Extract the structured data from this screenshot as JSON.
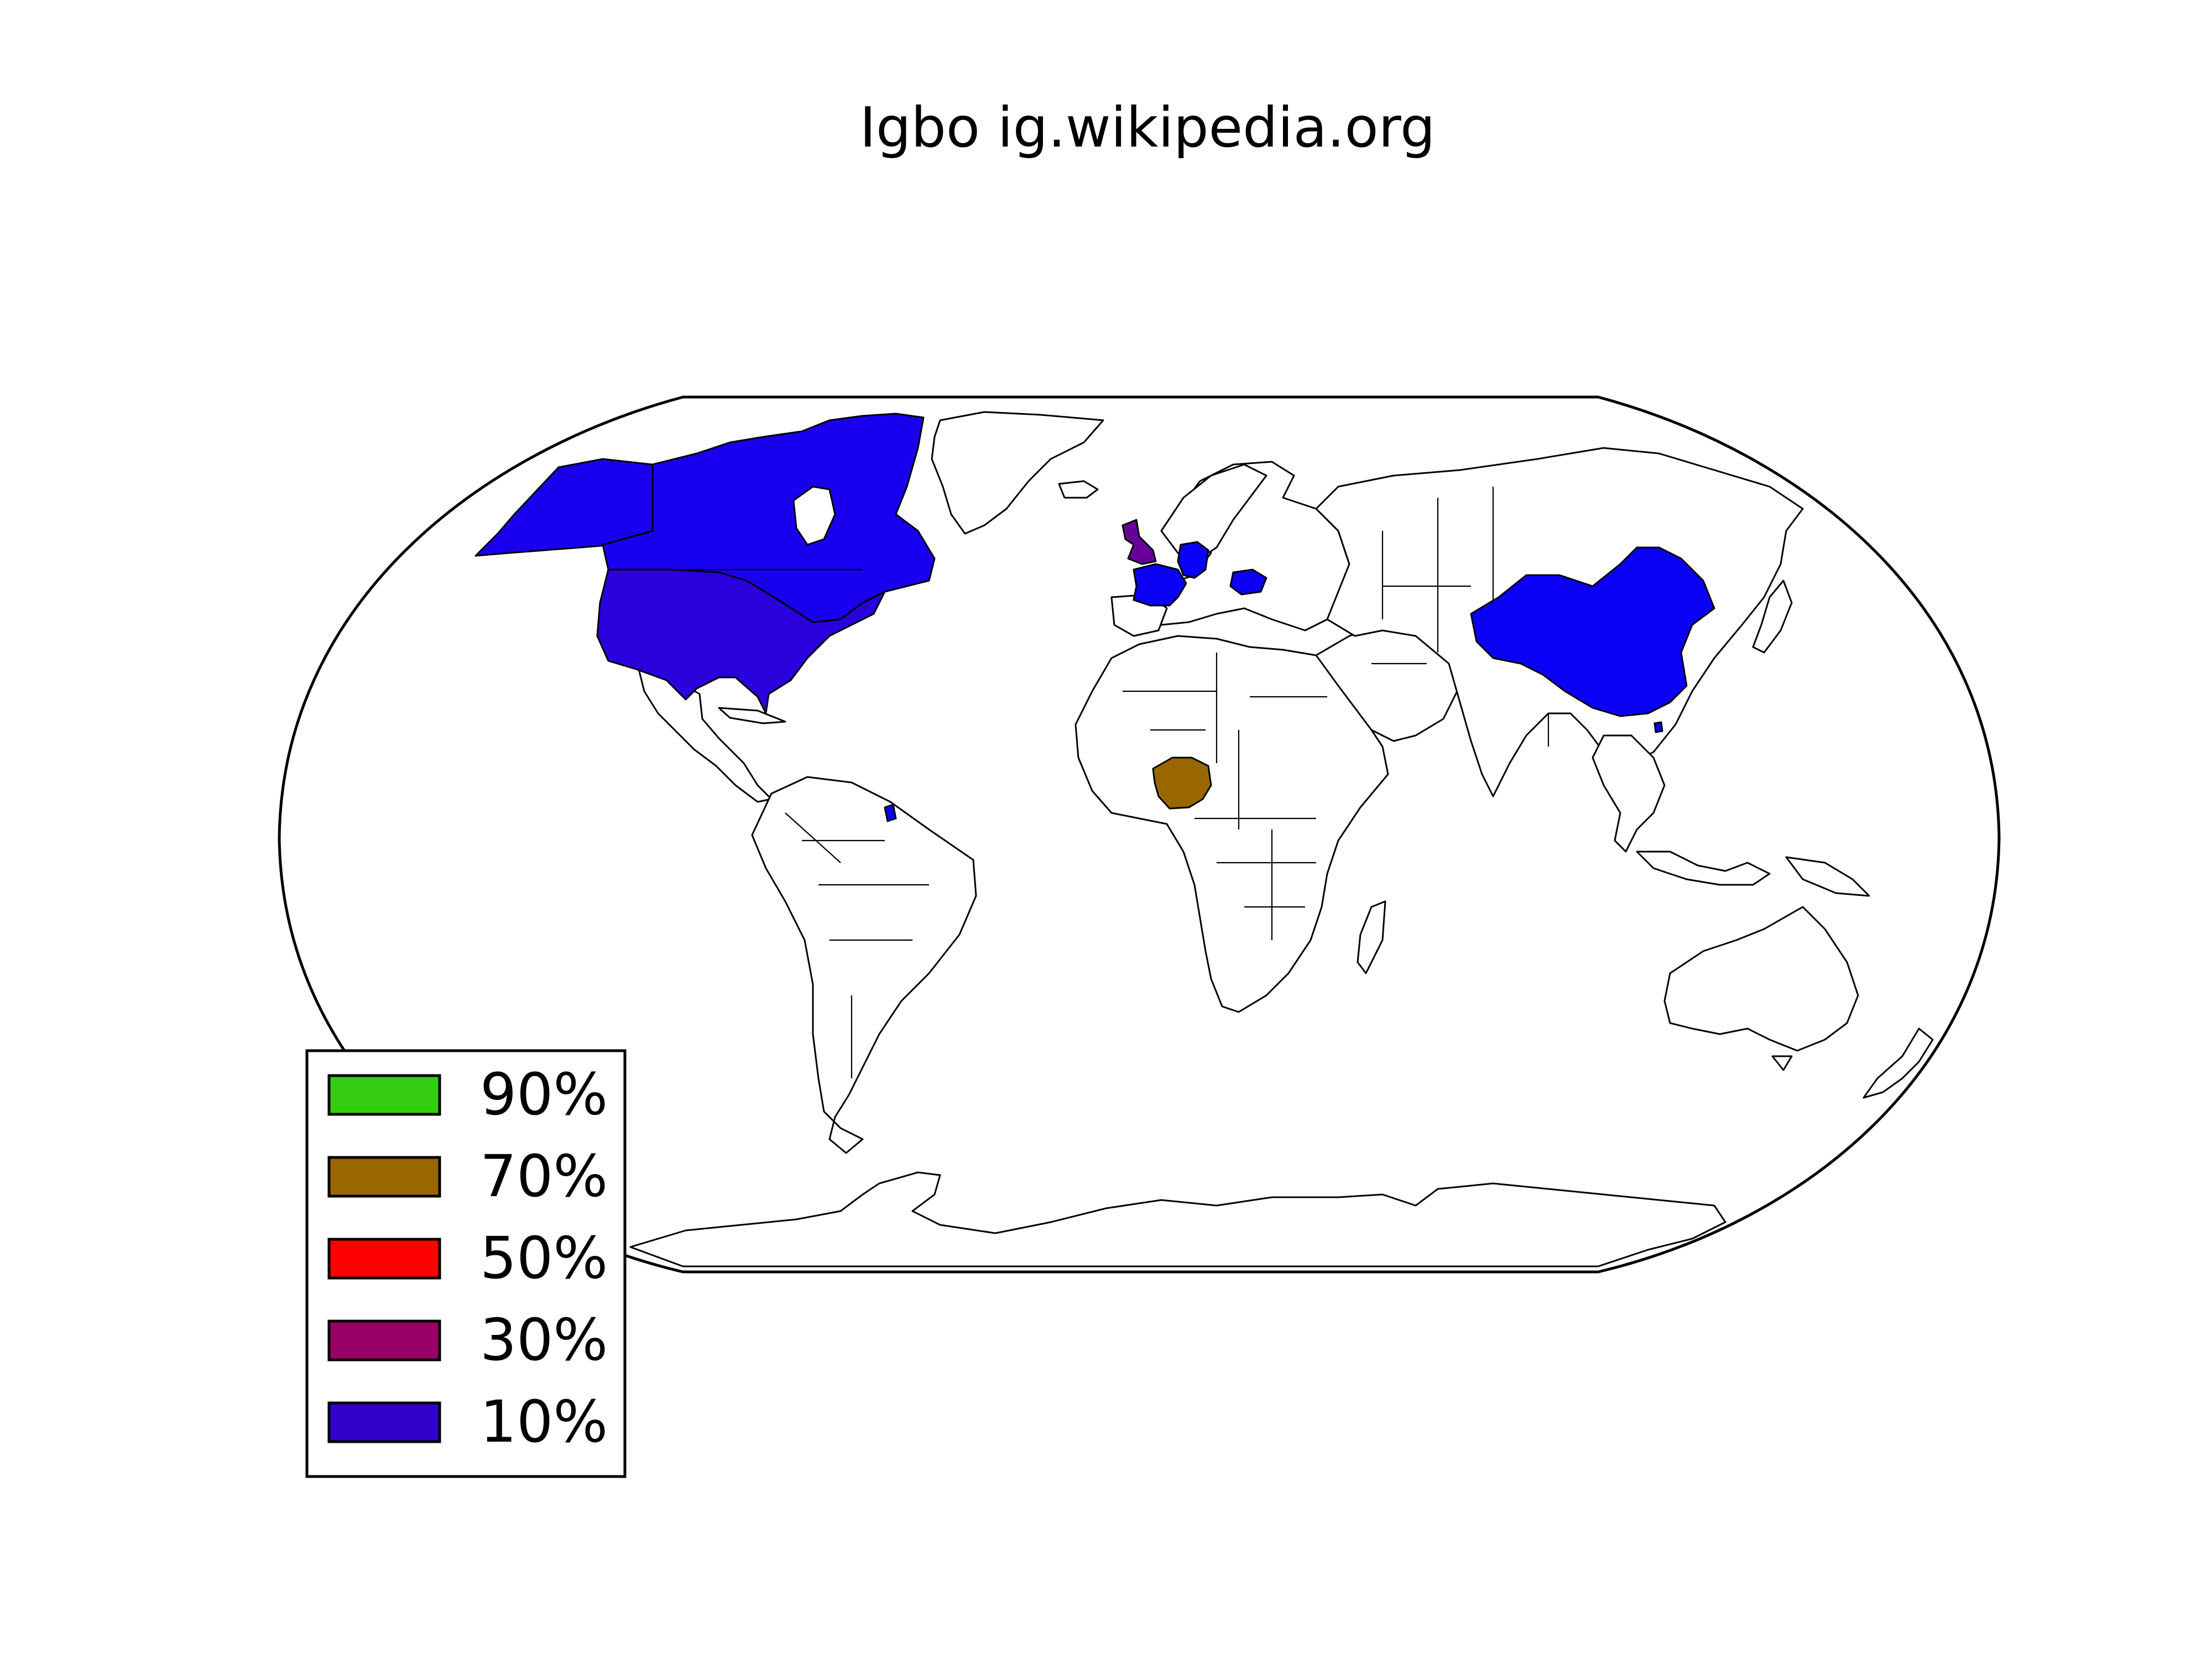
{
  "title": "Igbo ig.wikipedia.org",
  "legend": {
    "items": [
      {
        "label": "90%",
        "color": "#33cc11"
      },
      {
        "label": "70%",
        "color": "#996600"
      },
      {
        "label": "50%",
        "color": "#ff0000"
      },
      {
        "label": "30%",
        "color": "#990066"
      },
      {
        "label": "10%",
        "color": "#3300cc"
      }
    ]
  },
  "regions": [
    {
      "name": "Nigeria",
      "share": "70%",
      "color": "#996600"
    },
    {
      "name": "United Kingdom",
      "share": "30%",
      "color": "#660099"
    },
    {
      "name": "United States",
      "share": "10%",
      "color": "#2a00dd"
    },
    {
      "name": "Canada",
      "share": "10%",
      "color": "#1800ee"
    },
    {
      "name": "Alaska",
      "share": "10%",
      "color": "#1800ee"
    },
    {
      "name": "France",
      "share": "10%",
      "color": "#0a00f5"
    },
    {
      "name": "Germany",
      "share": "10%",
      "color": "#0a00f5"
    },
    {
      "name": "Romania",
      "share": "10%",
      "color": "#0a00f5"
    },
    {
      "name": "China",
      "share": "10%",
      "color": "#0a00f5"
    },
    {
      "name": "French Guiana",
      "share": "10%",
      "color": "#0a00f5"
    }
  ]
}
